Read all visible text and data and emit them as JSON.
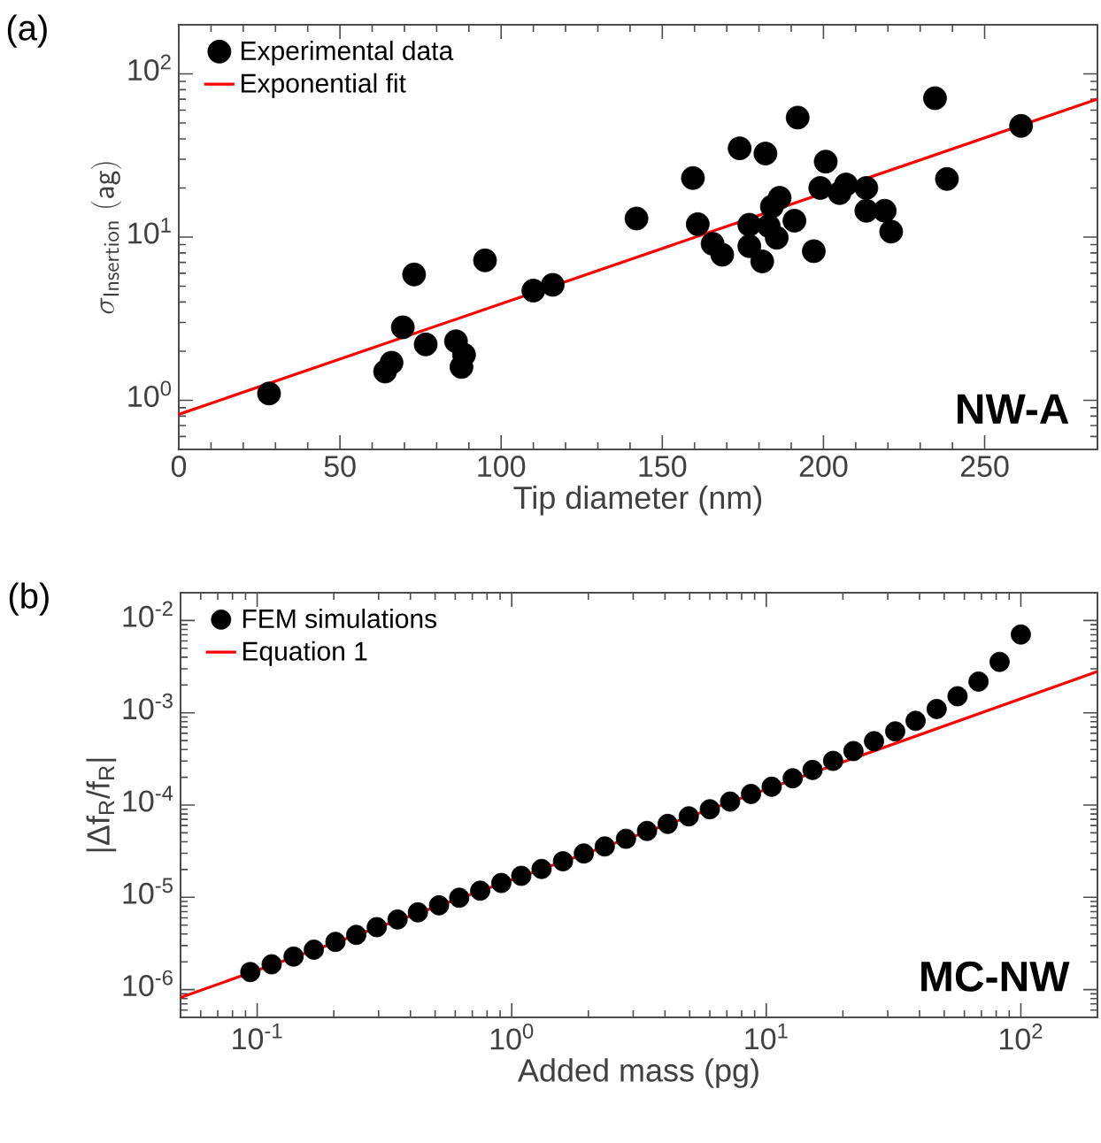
{
  "chart_data": [
    {
      "type": "scatter",
      "xlabel": "Tip diameter (nm)",
      "ylabel": "\\sigma_{\\mathsf{Insertion}}\\;\\mathsf{(ag)}",
      "xlim": [
        0,
        285
      ],
      "ylim": [
        0.5,
        200
      ],
      "log": "y",
      "legend": "top left",
      "xticks": [
        0,
        50,
        100,
        150,
        200,
        250
      ],
      "yticks": [
        {
          "value": 1,
          "label": "10$^{0}$"
        },
        {
          "value": 10,
          "label": "10$^{1}$"
        },
        {
          "value": 100,
          "label": "10$^{2}$"
        }
      ],
      "annotations": [
        "(a)",
        "NW-A"
      ],
      "series": [
        {
          "name": "Experimental data",
          "marker": "circle",
          "color": "#000000",
          "x": [
            28,
            64,
            66,
            69.5,
            73,
            76.6,
            86,
            88.5,
            87.7,
            95,
            110,
            116,
            142,
            159.5,
            161,
            165.6,
            168.6,
            174,
            177,
            177,
            181,
            182,
            183,
            184,
            185.5,
            186.4,
            191,
            192,
            197,
            199,
            200.7,
            205,
            207,
            213.3,
            213.3,
            219,
            221,
            234.6,
            238.3,
            261.3
          ],
          "values": [
            1.1,
            1.5,
            1.7,
            2.8,
            5.9,
            2.2,
            2.3,
            1.9,
            1.6,
            7.2,
            4.7,
            5.1,
            13,
            23,
            12,
            9.1,
            7.8,
            35,
            11.9,
            8.8,
            7.1,
            32.5,
            11.7,
            15.4,
            9.9,
            17.4,
            12.6,
            54,
            8.2,
            20,
            29,
            18.6,
            21,
            20,
            14.5,
            14.5,
            10.8,
            71,
            22.7,
            48
          ]
        },
        {
          "name": "Exponential fit",
          "type": "line",
          "marker": "none",
          "color": "#ff0000",
          "line_style": "solid",
          "x": [
            0,
            285
          ],
          "values": [
            0.82,
            70
          ]
        }
      ]
    },
    {
      "type": "scatter",
      "xlabel": "Added mass (pg)",
      "ylabel": "|Δf$_{R}$/f$_{R}$|",
      "xlim": [
        0.05,
        200
      ],
      "ylim": [
        5e-07,
        0.02
      ],
      "log": "xy",
      "legend": "top left",
      "xticks": [
        {
          "value": 0.1,
          "label": "10$^{-1}$"
        },
        {
          "value": 1,
          "label": "10$^{0}$"
        },
        {
          "value": 10,
          "label": "10$^{1}$"
        },
        {
          "value": 100,
          "label": "10$^{2}$"
        }
      ],
      "yticks": [
        {
          "value": 1e-06,
          "label": "10$^{-6}$"
        },
        {
          "value": 1e-05,
          "label": "10$^{-5}$"
        },
        {
          "value": 0.0001,
          "label": "10$^{-4}$"
        },
        {
          "value": 0.001,
          "label": "10$^{-3}$"
        },
        {
          "value": 0.01,
          "label": "10$^{-2}$"
        }
      ],
      "annotations": [
        "(b)",
        "MC-NW"
      ],
      "series": [
        {
          "name": "FEM simulations",
          "marker": "circle",
          "color": "#000000",
          "x": [
            0.094,
            0.114,
            0.139,
            0.167,
            0.203,
            0.245,
            0.295,
            0.356,
            0.428,
            0.518,
            0.622,
            0.752,
            0.91,
            1.09,
            1.31,
            1.59,
            1.92,
            2.32,
            2.81,
            3.4,
            4.1,
            4.96,
            6.0,
            7.21,
            8.71,
            10.5,
            12.7,
            15.2,
            18.3,
            22.0,
            26.5,
            32.1,
            38.6,
            46.7,
            56.4,
            68.2,
            82.5,
            100
          ],
          "values": [
            1.55e-06,
            1.88e-06,
            2.28e-06,
            2.71e-06,
            3.29e-06,
            3.92e-06,
            4.75e-06,
            5.75e-06,
            6.87e-06,
            8.19e-06,
            9.9e-06,
            1.18e-05,
            1.43e-05,
            1.71e-05,
            2.03e-05,
            2.46e-05,
            2.99e-05,
            3.56e-05,
            4.31e-05,
            5.24e-05,
            6.24e-05,
            7.55e-05,
            9e-05,
            0.000109,
            0.000132,
            0.000158,
            0.000195,
            0.00024,
            0.000301,
            0.000385,
            0.000492,
            0.000629,
            0.000818,
            0.0011,
            0.00151,
            0.00218,
            0.00356,
            0.00705
          ]
        },
        {
          "name": "Equation 1",
          "type": "line",
          "marker": "none",
          "color": "#ff0000",
          "line_style": "solid",
          "x": [
            0.05,
            200
          ],
          "values": [
            8.2e-07,
            0.0028
          ]
        }
      ]
    }
  ]
}
